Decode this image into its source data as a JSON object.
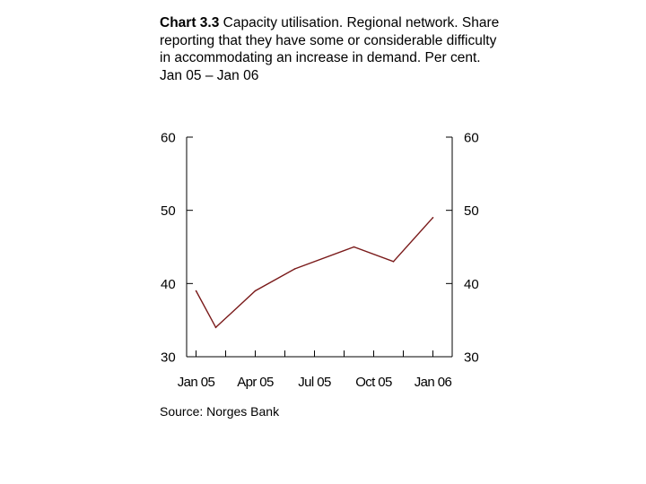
{
  "title": {
    "bold": "Chart 3.3",
    "text": " Capacity utilisation. Regional network. Share reporting that they have some or considerable difficulty in accommodating an increase in demand. Per cent. Jan 05 – Jan 06"
  },
  "source": "Source: Norges Bank",
  "chart_data": {
    "type": "line",
    "x": [
      "Jan 05",
      "Feb 05",
      "Apr 05",
      "Jun 05",
      "Sep 05",
      "Nov 05",
      "Jan 06"
    ],
    "x_month_index": [
      0,
      1,
      3,
      5,
      8,
      10,
      12
    ],
    "series": [
      {
        "values": [
          39,
          34,
          39,
          42,
          45,
          43,
          49
        ],
        "color": "#7a1a1a"
      }
    ],
    "x_tick_labels": [
      "Jan 05",
      "Apr 05",
      "Jul 05",
      "Oct 05",
      "Jan 06"
    ],
    "y_ticks": [
      30,
      40,
      50,
      60
    ],
    "ylim": [
      30,
      60
    ],
    "left_axis_labels": [
      "30",
      "40",
      "50",
      "60"
    ],
    "right_axis_labels": [
      "30",
      "40",
      "50",
      "60"
    ],
    "grid": false,
    "legend": "none"
  }
}
